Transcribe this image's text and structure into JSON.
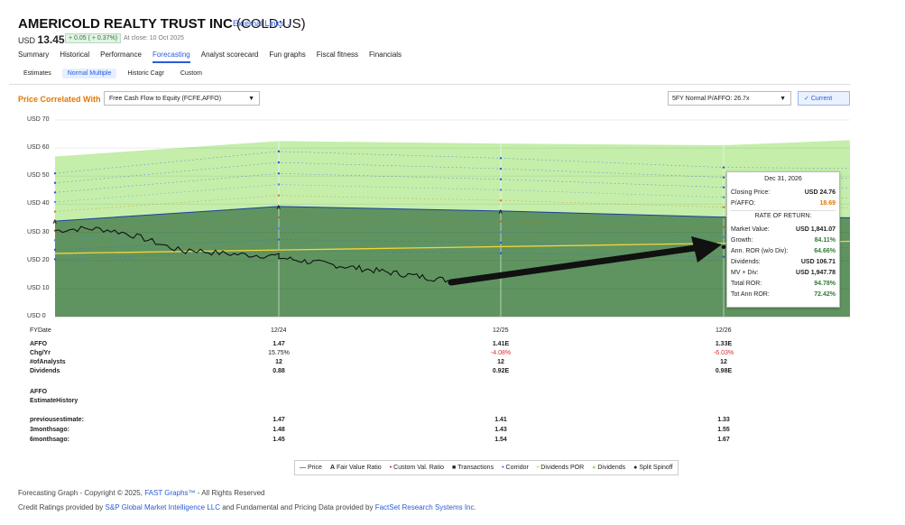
{
  "header": {
    "company": "AMERICOLD REALTY TRUST INC",
    "ticker": "(COLD:US)",
    "external_links": "External Links",
    "currency": "USD",
    "price": "13.45",
    "change": "+ 0.05 ( + 0.37%)",
    "close_info": "At close: 10 Oct 2025"
  },
  "nav": [
    "Summary",
    "Historical",
    "Performance",
    "Forecasting",
    "Analyst scorecard",
    "Fun graphs",
    "Fiscal fitness",
    "Financials"
  ],
  "nav_active": "Forecasting",
  "subnav": [
    "Estimates",
    "Normal Multiple",
    "Historic Cagr",
    "Custom"
  ],
  "subnav_active": "Normal Multiple",
  "controls": {
    "price_correlated_label": "Price Correlated With",
    "metric_select": "Free Cash Flow to Equity (FCFE,AFFO)",
    "multiple_select": "5FY Normal P/AFFO: 26.7x",
    "current_button": "Current"
  },
  "chart_data": {
    "type": "area",
    "y_ticks": [
      "USD 70",
      "USD 60",
      "USD 50",
      "USD 40",
      "USD 30",
      "USD 20",
      "USD 10",
      "USD 0"
    ],
    "ylim": [
      0,
      70
    ],
    "x_ticks": [
      "12/24",
      "12/25",
      "12/26"
    ],
    "series": [
      {
        "name": "Fair Value Ratio",
        "x": [
          "12/23",
          "12/24",
          "12/25",
          "12/26"
        ],
        "values": [
          34,
          39.2,
          37.6,
          35.4
        ]
      },
      {
        "name": "Dividends",
        "x": [
          "12/23",
          "12/24",
          "12/25",
          "12/26"
        ],
        "values": [
          57,
          62.5,
          61.6,
          61
        ]
      },
      {
        "name": "Price",
        "x": [
          "12/23",
          "12/24",
          "12/25",
          "12/26"
        ],
        "values": [
          30.6,
          21,
          12.8,
          24.8
        ]
      }
    ]
  },
  "tooltip": {
    "date": "Dec 31, 2026",
    "closing_price_label": "Closing Price:",
    "closing_price": "USD 24.76",
    "pe_label": "P/AFFO:",
    "pe": "18.69",
    "ror_title": "RATE OF RETURN:",
    "market_value_label": "Market Value:",
    "market_value": "USD 1,841.07",
    "growth_label": "Growth:",
    "growth": "84.11%",
    "ann_ror_label": "Ann. ROR (w/o Div):",
    "ann_ror": "64.66%",
    "dividends_label": "Dividends:",
    "dividends": "USD 106.71",
    "mv_div_label": "MV + Div:",
    "mv_div": "USD 1,947.78",
    "total_ror_label": "Total ROR:",
    "total_ror": "94.78%",
    "tot_ann_ror_label": "Tot Ann ROR:",
    "tot_ann_ror": "72.42%"
  },
  "table": {
    "fydate_label": "FYDate",
    "rows": [
      {
        "label": "AFFO",
        "c1": "1.47",
        "c2": "1.41E",
        "c3": "1.33E"
      },
      {
        "label": "Chg/Yr",
        "c1": "15.75%",
        "c2": "-4.08%",
        "c3": "-6.03%"
      },
      {
        "label": "#ofAnalysts",
        "c1": "12",
        "c2": "12",
        "c3": "12"
      },
      {
        "label": "Dividends",
        "c1": "0.88",
        "c2": "0.92E",
        "c3": "0.98E"
      }
    ],
    "history_title1": "AFFO",
    "history_title2": "EstimateHistory",
    "history_rows": [
      {
        "label": "previousestimate:",
        "c1": "1.47",
        "c2": "1.41",
        "c3": "1.33"
      },
      {
        "label": "3monthsago:",
        "c1": "1.48",
        "c2": "1.43",
        "c3": "1.55"
      },
      {
        "label": "6monthsago:",
        "c1": "1.45",
        "c2": "1.54",
        "c3": "1.67"
      }
    ]
  },
  "legend": [
    "Price",
    "Fair Value Ratio",
    "Custom Val. Ratio",
    "Transactions",
    "Corridor",
    "Dividends POR",
    "Dividends",
    "Split Spinoff"
  ],
  "footer": {
    "line1_pre": "Forecasting Graph - Copyright © 2025,",
    "line1_link": "FAST Graphs™",
    "line1_post": "- All Rights Reserved",
    "line2_pre": "Credit Ratings provided by",
    "line2_link1": "S&P Global Market Intelligence LLC",
    "line2_mid": "and Fundamental and Pricing Data provided by",
    "line2_link2": "FactSet Research Systems Inc."
  },
  "colors": {
    "accent": "#2a5bd7",
    "dividends_area": "#bdeaa0",
    "fair_value_area": "#5e8f5a",
    "price_line": "#111111",
    "orange": "#e07a00"
  }
}
